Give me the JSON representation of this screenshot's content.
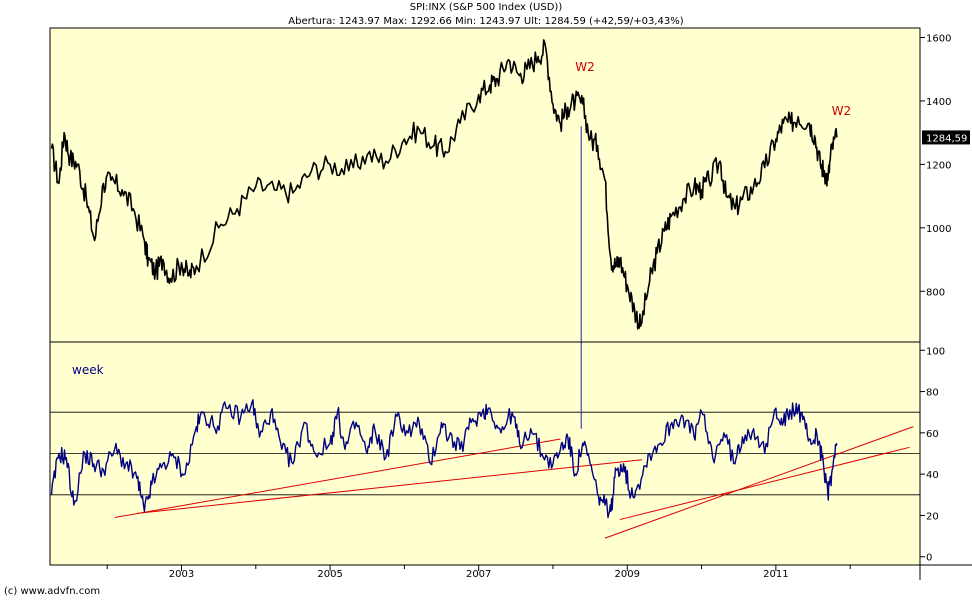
{
  "header": {
    "title": "SPI:INX (S&P 500 Index (USD))",
    "ohlc": "Abertura: 1243.97 Max: 1292.66 Min: 1243.97 Ult: 1284.59 (+42,59/+03,43%)"
  },
  "footer": {
    "credit": "(c) www.advfn.com"
  },
  "colors": {
    "background": "#ffffd0",
    "price_line": "#000000",
    "indicator_line": "#000080",
    "trendline": "#dd0000",
    "annotation": "#cc0000",
    "marker": "#2222aa"
  },
  "chart_data": [
    {
      "type": "line",
      "panel": "price",
      "title": "",
      "xlabel": "",
      "ylabel": "",
      "x_ticks": [
        "2003",
        "2005",
        "2007",
        "2009",
        "2011"
      ],
      "y_ticks": [
        800,
        1000,
        1200,
        1400,
        1600
      ],
      "ylim": [
        640,
        1630
      ],
      "xlim": [
        2001.23,
        2012.94
      ],
      "last_value_label": "1284,59",
      "annotations": [
        {
          "text": "W2",
          "x": 2008.3,
          "y": 1495
        },
        {
          "text": "W2",
          "x": 2011.75,
          "y": 1355
        }
      ],
      "series": [
        {
          "x": [
            2001.25,
            2001.35,
            2001.42,
            2001.5,
            2001.6,
            2001.72,
            2001.83,
            2001.95,
            2002.05,
            2002.2,
            2002.35,
            2002.5,
            2002.55,
            2002.65,
            2002.75,
            2002.85,
            2003.0,
            2003.1,
            2003.2,
            2003.5,
            2003.75,
            2004.0,
            2004.25,
            2004.5,
            2004.75,
            2005.0,
            2005.25,
            2005.5,
            2005.75,
            2006.0,
            2006.2,
            2006.4,
            2006.55,
            2006.75,
            2007.0,
            2007.15,
            2007.25,
            2007.4,
            2007.55,
            2007.65,
            2007.8,
            2007.9,
            2008.0,
            2008.1,
            2008.2,
            2008.3,
            2008.4,
            2008.5,
            2008.6,
            2008.7,
            2008.78,
            2008.85,
            2008.9,
            2009.0,
            2009.1,
            2009.18,
            2009.3,
            2009.4,
            2009.5,
            2009.6,
            2009.75,
            2009.9,
            2010.0,
            2010.1,
            2010.25,
            2010.33,
            2010.45,
            2010.55,
            2010.7,
            2010.85,
            2011.0,
            2011.1,
            2011.2,
            2011.3,
            2011.45,
            2011.52,
            2011.6,
            2011.65,
            2011.7,
            2011.75,
            2011.82
          ],
          "y": [
            1250,
            1140,
            1300,
            1220,
            1200,
            1090,
            960,
            1140,
            1150,
            1120,
            1060,
            960,
            900,
            860,
            900,
            840,
            890,
            850,
            880,
            1000,
            1060,
            1130,
            1120,
            1110,
            1180,
            1200,
            1180,
            1230,
            1210,
            1280,
            1310,
            1260,
            1240,
            1330,
            1420,
            1450,
            1470,
            1530,
            1480,
            1500,
            1540,
            1570,
            1390,
            1330,
            1380,
            1400,
            1390,
            1280,
            1260,
            1150,
            900,
            880,
            900,
            820,
            740,
            690,
            830,
            920,
            990,
            1040,
            1090,
            1130,
            1120,
            1150,
            1210,
            1100,
            1060,
            1090,
            1130,
            1190,
            1280,
            1330,
            1330,
            1350,
            1330,
            1290,
            1200,
            1180,
            1150,
            1250,
            1285
          ],
          "color": "#000000"
        }
      ]
    },
    {
      "type": "line",
      "panel": "indicator",
      "title": "",
      "xlabel": "",
      "ylabel": "",
      "label": "week",
      "x_ticks": [
        "2003",
        "2005",
        "2007",
        "2009",
        "2011"
      ],
      "y_ticks": [
        0,
        20,
        40,
        60,
        80,
        100
      ],
      "ylim": [
        -4,
        104
      ],
      "xlim": [
        2001.23,
        2012.94
      ],
      "reference_lines": [
        30,
        50,
        70
      ],
      "trendlines": [
        {
          "x1": 2002.1,
          "y1": 19,
          "x2": 2008.1,
          "y2": 57
        },
        {
          "x1": 2002.4,
          "y1": 21,
          "x2": 2009.2,
          "y2": 47
        },
        {
          "x1": 2008.7,
          "y1": 9,
          "x2": 2012.85,
          "y2": 63
        },
        {
          "x1": 2008.9,
          "y1": 18,
          "x2": 2012.8,
          "y2": 53
        }
      ],
      "marker_line": {
        "x": 2008.38,
        "y_top": 1320,
        "y_bottom": 62
      },
      "series": [
        {
          "x": [
            2001.25,
            2001.35,
            2001.45,
            2001.55,
            2001.7,
            2001.82,
            2001.95,
            2002.1,
            2002.25,
            2002.4,
            2002.5,
            2002.6,
            2002.75,
            2002.9,
            2003.05,
            2003.2,
            2003.3,
            2003.45,
            2003.6,
            2003.8,
            2003.95,
            2004.05,
            2004.2,
            2004.35,
            2004.5,
            2004.65,
            2004.8,
            2005.0,
            2005.1,
            2005.2,
            2005.35,
            2005.5,
            2005.6,
            2005.75,
            2005.9,
            2006.05,
            2006.2,
            2006.35,
            2006.5,
            2006.6,
            2006.75,
            2006.9,
            2007.05,
            2007.15,
            2007.3,
            2007.45,
            2007.55,
            2007.7,
            2007.85,
            2008.0,
            2008.1,
            2008.2,
            2008.3,
            2008.4,
            2008.5,
            2008.6,
            2008.7,
            2008.78,
            2008.85,
            2008.95,
            2009.05,
            2009.15,
            2009.3,
            2009.45,
            2009.6,
            2009.75,
            2009.9,
            2010.0,
            2010.15,
            2010.3,
            2010.45,
            2010.55,
            2010.7,
            2010.85,
            2011.0,
            2011.1,
            2011.2,
            2011.3,
            2011.4,
            2011.5,
            2011.55,
            2011.62,
            2011.7,
            2011.75,
            2011.82
          ],
          "y": [
            30,
            50,
            48,
            25,
            50,
            45,
            42,
            52,
            45,
            38,
            22,
            35,
            45,
            48,
            40,
            63,
            70,
            62,
            72,
            68,
            75,
            58,
            70,
            52,
            45,
            65,
            50,
            55,
            70,
            52,
            65,
            50,
            62,
            48,
            68,
            60,
            65,
            45,
            65,
            58,
            52,
            65,
            70,
            72,
            60,
            70,
            55,
            62,
            50,
            45,
            52,
            58,
            40,
            55,
            45,
            30,
            25,
            22,
            42,
            45,
            30,
            35,
            50,
            55,
            65,
            68,
            58,
            70,
            48,
            60,
            45,
            58,
            62,
            50,
            72,
            65,
            70,
            72,
            62,
            55,
            60,
            48,
            30,
            40,
            55
          ],
          "color": "#000080"
        }
      ]
    }
  ]
}
